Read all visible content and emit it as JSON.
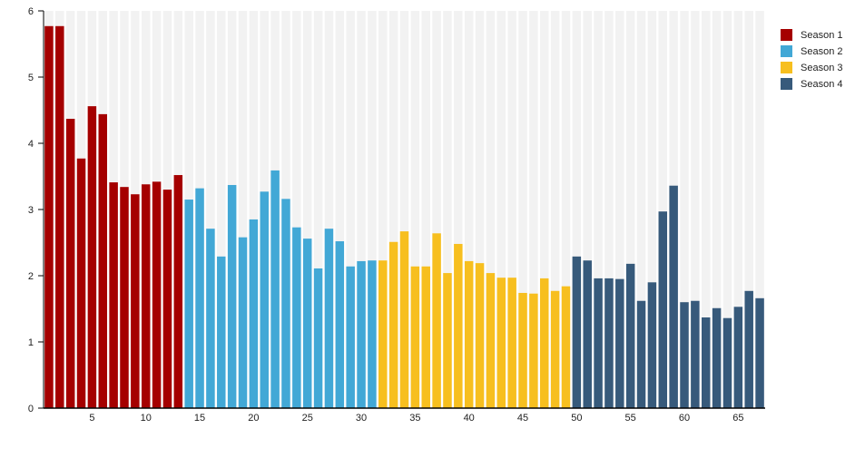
{
  "chart_data": {
    "type": "bar",
    "title": "",
    "xlabel": "",
    "ylabel": "",
    "ylim": [
      0,
      6
    ],
    "yticks": [
      0,
      1,
      2,
      3,
      4,
      5,
      6
    ],
    "xticks": [
      5,
      10,
      15,
      20,
      25,
      30,
      35,
      40,
      45,
      50,
      55,
      60,
      65
    ],
    "grid": false,
    "legend_position": "top-right",
    "background_stripes": true,
    "series": [
      {
        "name": "Season 1",
        "color": "#a50000",
        "x": [
          1,
          2,
          3,
          4,
          5,
          6,
          7,
          8,
          9,
          10,
          11,
          12,
          13
        ],
        "values": [
          5.77,
          5.77,
          4.37,
          3.77,
          4.56,
          4.44,
          3.41,
          3.34,
          3.23,
          3.38,
          3.42,
          3.3,
          3.52
        ]
      },
      {
        "name": "Season 2",
        "color": "#42a8d6",
        "x": [
          14,
          15,
          16,
          17,
          18,
          19,
          20,
          21,
          22,
          23,
          24,
          25,
          26,
          27,
          28,
          29,
          30,
          31
        ],
        "values": [
          3.15,
          3.32,
          2.71,
          2.29,
          3.37,
          2.58,
          2.85,
          3.27,
          3.59,
          3.16,
          2.73,
          2.56,
          2.11,
          2.71,
          2.52,
          2.14,
          2.22,
          2.23
        ]
      },
      {
        "name": "Season 3",
        "color": "#f7bf1f",
        "x": [
          32,
          33,
          34,
          35,
          36,
          37,
          38,
          39,
          40,
          41,
          42,
          43,
          44,
          45,
          46,
          47,
          48,
          49
        ],
        "values": [
          2.23,
          2.51,
          2.67,
          2.14,
          2.14,
          2.64,
          2.04,
          2.48,
          2.22,
          2.19,
          2.04,
          1.97,
          1.97,
          1.74,
          1.73,
          1.96,
          1.77,
          1.84
        ]
      },
      {
        "name": "Season 4",
        "color": "#375a7b",
        "x": [
          50,
          51,
          52,
          53,
          54,
          55,
          56,
          57,
          58,
          59,
          60,
          61,
          62,
          63,
          64,
          65,
          66,
          67
        ],
        "values": [
          2.29,
          2.23,
          1.96,
          1.96,
          1.95,
          2.18,
          1.62,
          1.9,
          2.97,
          3.36,
          1.6,
          1.62,
          1.37,
          1.51,
          1.36,
          1.53,
          1.77,
          1.66
        ]
      }
    ]
  }
}
